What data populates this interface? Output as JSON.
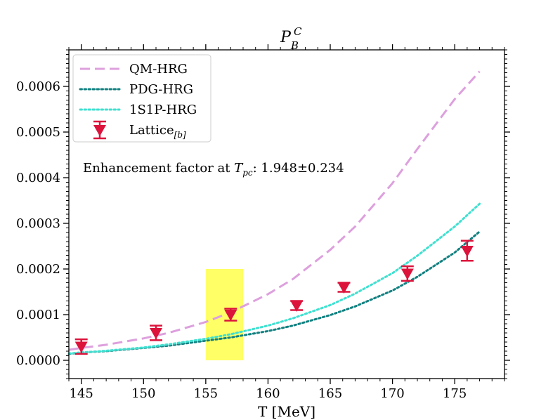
{
  "chart_data": {
    "type": "line",
    "title": "P",
    "title_sup": "C",
    "title_sub": "B",
    "xlabel": "T [MeV]",
    "ylabel": "",
    "xlim": [
      144,
      179
    ],
    "ylim": [
      -4e-05,
      0.00068
    ],
    "xticks": [
      145,
      150,
      155,
      160,
      165,
      170,
      175
    ],
    "xtick_labels": [
      "145",
      "150",
      "155",
      "160",
      "165",
      "170",
      "175"
    ],
    "yticks": [
      0.0,
      0.0001,
      0.0002,
      0.0003,
      0.0004,
      0.0005,
      0.0006
    ],
    "ytick_labels": [
      "0.0000",
      "0.0001",
      "0.0002",
      "0.0003",
      "0.0004",
      "0.0005",
      "0.0006"
    ],
    "grid": false,
    "legend_position": "top-left",
    "annotation": {
      "prefix": "Enhancement factor at ",
      "var": "T",
      "var_sub": "pc",
      "suffix": ": 1.948±0.234"
    },
    "band": {
      "x_range": [
        155,
        158
      ],
      "y_range": [
        0.0,
        0.0002
      ],
      "color": "#ffff66"
    },
    "series": [
      {
        "name": "QM-HRG",
        "style": "dashed",
        "color": "#dda0dd",
        "x": [
          144,
          145,
          147,
          150,
          152,
          155,
          157,
          160,
          162,
          165,
          167,
          170,
          172,
          175,
          177
        ],
        "y": [
          2.3e-05,
          2.7e-05,
          3.4e-05,
          4.8e-05,
          6e-05,
          8.4e-05,
          0.000105,
          0.000145,
          0.000178,
          0.000242,
          0.000293,
          0.000388,
          0.000463,
          0.000572,
          0.000633
        ]
      },
      {
        "name": "PDG-HRG",
        "style": "dotted",
        "color": "#118080",
        "x": [
          144,
          145,
          147,
          150,
          152,
          155,
          157,
          160,
          162,
          165,
          167,
          170,
          172,
          175,
          177
        ],
        "y": [
          1.4e-05,
          1.7e-05,
          2e-05,
          2.7e-05,
          3.2e-05,
          4.3e-05,
          5e-05,
          6.4e-05,
          7.6e-05,
          9.9e-05,
          0.000118,
          0.000153,
          0.000183,
          0.000236,
          0.000282
        ]
      },
      {
        "name": "1S1P-HRG",
        "style": "dotted",
        "color": "#40e0d0",
        "x": [
          144,
          145,
          147,
          150,
          152,
          155,
          157,
          160,
          162,
          165,
          167,
          170,
          172,
          175,
          177
        ],
        "y": [
          1.5e-05,
          1.7e-05,
          2.1e-05,
          2.8e-05,
          3.5e-05,
          4.7e-05,
          5.7e-05,
          7.6e-05,
          9.2e-05,
          0.000121,
          0.000146,
          0.000191,
          0.000229,
          0.000293,
          0.000343
        ]
      }
    ],
    "points": {
      "name": "Lattice",
      "name_sub": "[b]",
      "color": "#dc143c",
      "x": [
        145,
        151,
        157,
        162.3,
        166.1,
        171.2,
        176
      ],
      "y": [
        3e-05,
        6e-05,
        0.0001,
        0.00012,
        0.00016,
        0.00019,
        0.00024
      ],
      "err": [
        1.6e-05,
        1.6e-05,
        1.3e-05,
        1e-05,
        1e-05,
        1.6e-05,
        2.2e-05
      ]
    }
  }
}
